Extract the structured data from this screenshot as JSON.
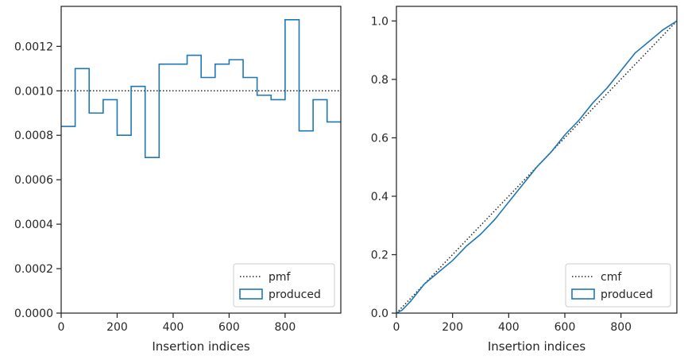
{
  "chart_data": [
    {
      "type": "step",
      "xlabel": "Insertion indices",
      "ylabel": "",
      "xlim": [
        0,
        999
      ],
      "ylim": [
        0,
        0.00138
      ],
      "xticks": [
        0,
        200,
        400,
        600,
        800
      ],
      "xtick_labels": [
        "0",
        "200",
        "400",
        "600",
        "800"
      ],
      "yticks": [
        0,
        0.0002,
        0.0004,
        0.0006,
        0.0008,
        0.001,
        0.0012
      ],
      "ytick_labels": [
        "0.0000",
        "0.0002",
        "0.0004",
        "0.0006",
        "0.0008",
        "0.0010",
        "0.0012"
      ],
      "legend_position": "lower-right",
      "series": [
        {
          "name": "pmf",
          "style": "dotted",
          "color": "#262626",
          "x": [
            0,
            999
          ],
          "y": [
            0.001,
            0.001
          ]
        },
        {
          "name": "produced",
          "style": "step",
          "color": "#1f77b4",
          "bin_edges": [
            0,
            50,
            100,
            150,
            200,
            250,
            300,
            350,
            400,
            450,
            500,
            550,
            600,
            650,
            700,
            750,
            800,
            850,
            900,
            950,
            1000
          ],
          "values": [
            0.00084,
            0.0011,
            0.0009,
            0.00096,
            0.0008,
            0.00102,
            0.0007,
            0.00112,
            0.00112,
            0.00116,
            0.00106,
            0.00112,
            0.00114,
            0.00106,
            0.00098,
            0.00096,
            0.00132,
            0.00082,
            0.00096,
            0.00086
          ]
        }
      ]
    },
    {
      "type": "line",
      "xlabel": "Insertion indices",
      "ylabel": "",
      "xlim": [
        0,
        999
      ],
      "ylim": [
        0,
        1.05
      ],
      "xticks": [
        0,
        200,
        400,
        600,
        800
      ],
      "xtick_labels": [
        "0",
        "200",
        "400",
        "600",
        "800"
      ],
      "yticks": [
        0,
        0.2,
        0.4,
        0.6,
        0.8,
        1.0
      ],
      "ytick_labels": [
        "0.0",
        "0.2",
        "0.4",
        "0.6",
        "0.8",
        "1.0"
      ],
      "legend_position": "lower-right",
      "series": [
        {
          "name": "cmf",
          "style": "dotted",
          "color": "#262626",
          "x": [
            0,
            999
          ],
          "y": [
            0,
            1.0
          ]
        },
        {
          "name": "produced",
          "style": "line",
          "color": "#1f77b4",
          "x": [
            0,
            20,
            50,
            100,
            150,
            200,
            250,
            300,
            350,
            400,
            450,
            500,
            550,
            600,
            650,
            700,
            750,
            800,
            850,
            900,
            950,
            999
          ],
          "y": [
            0,
            0.01,
            0.04,
            0.1,
            0.14,
            0.18,
            0.23,
            0.27,
            0.32,
            0.38,
            0.44,
            0.5,
            0.55,
            0.61,
            0.66,
            0.72,
            0.77,
            0.83,
            0.89,
            0.93,
            0.97,
            1.0
          ]
        }
      ]
    }
  ]
}
